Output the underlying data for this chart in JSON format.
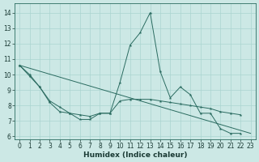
{
  "xlabel": "Humidex (Indice chaleur)",
  "bg_color": "#cce8e5",
  "grid_color": "#aad4d0",
  "line_color": "#2a6b60",
  "x_all": [
    0,
    1,
    2,
    3,
    4,
    5,
    6,
    7,
    8,
    9,
    10,
    11,
    12,
    13,
    14,
    15,
    16,
    17,
    18,
    19,
    20,
    21,
    22,
    23
  ],
  "y_jagged": [
    10.6,
    10.0,
    9.2,
    8.2,
    7.6,
    7.5,
    7.1,
    7.1,
    7.5,
    7.5,
    9.5,
    11.9,
    12.7,
    14.0,
    10.2,
    8.5,
    9.2,
    8.7,
    7.5,
    7.5,
    6.5,
    6.2,
    6.2,
    null
  ],
  "y_smooth": [
    10.6,
    9.9,
    9.2,
    8.3,
    7.9,
    7.5,
    7.4,
    7.3,
    7.5,
    7.5,
    8.3,
    8.4,
    8.4,
    8.4,
    8.3,
    8.2,
    8.1,
    8.0,
    7.9,
    7.8,
    7.6,
    7.5,
    7.4,
    null
  ],
  "y_line_x": [
    0,
    23
  ],
  "y_line_y": [
    10.6,
    6.2
  ],
  "ylim": [
    5.8,
    14.6
  ],
  "xlim": [
    -0.5,
    23.5
  ],
  "yticks": [
    6,
    7,
    8,
    9,
    10,
    11,
    12,
    13,
    14
  ],
  "xticks": [
    0,
    1,
    2,
    3,
    4,
    5,
    6,
    7,
    8,
    9,
    10,
    11,
    12,
    13,
    14,
    15,
    16,
    17,
    18,
    19,
    20,
    21,
    22,
    23
  ],
  "tick_fontsize": 5.5,
  "xlabel_fontsize": 6.5
}
